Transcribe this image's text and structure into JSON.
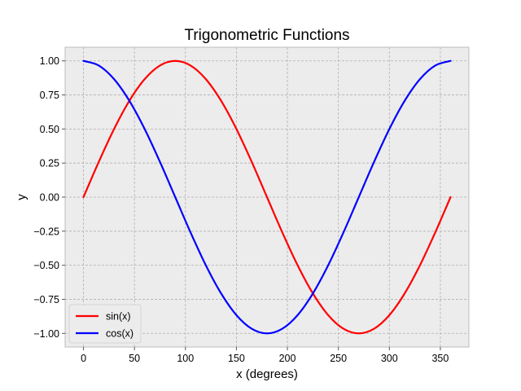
{
  "chart_data": {
    "type": "line",
    "title": "Trigonometric Functions",
    "xlabel": "x (degrees)",
    "ylabel": "y",
    "xlim": [
      -18,
      378
    ],
    "ylim": [
      -1.1,
      1.1
    ],
    "x_ticks": [
      0,
      50,
      100,
      150,
      200,
      250,
      300,
      350
    ],
    "y_ticks": [
      -1.0,
      -0.75,
      -0.5,
      -0.25,
      0.0,
      0.25,
      0.5,
      0.75,
      1.0
    ],
    "x_tick_labels": [
      "0",
      "50",
      "100",
      "150",
      "200",
      "250",
      "300",
      "350"
    ],
    "y_tick_labels": [
      "−1.00",
      "−0.75",
      "−0.50",
      "−0.25",
      "0.00",
      "0.25",
      "0.50",
      "0.75",
      "1.00"
    ],
    "grid": true,
    "legend_position": "lower-left",
    "x": [
      0,
      15,
      30,
      45,
      60,
      75,
      90,
      105,
      120,
      135,
      150,
      165,
      180,
      195,
      210,
      225,
      240,
      255,
      270,
      285,
      300,
      315,
      330,
      345,
      360
    ],
    "series": [
      {
        "name": "sin(x)",
        "color": "#ff0000",
        "values": [
          0.0,
          0.259,
          0.5,
          0.707,
          0.866,
          0.966,
          1.0,
          0.966,
          0.866,
          0.707,
          0.5,
          0.259,
          0.0,
          -0.259,
          -0.5,
          -0.707,
          -0.866,
          -0.966,
          -1.0,
          -0.966,
          -0.866,
          -0.707,
          -0.5,
          -0.259,
          0.0
        ]
      },
      {
        "name": "cos(x)",
        "color": "#0000ff",
        "values": [
          1.0,
          0.966,
          0.866,
          0.707,
          0.5,
          0.259,
          0.0,
          -0.259,
          -0.5,
          -0.707,
          -0.866,
          -0.966,
          -1.0,
          -0.966,
          -0.866,
          -0.707,
          -0.5,
          -0.259,
          0.0,
          0.259,
          0.5,
          0.707,
          0.866,
          0.966,
          1.0
        ]
      }
    ]
  },
  "style": {
    "plot_background": "#ececec",
    "grid_color": "#b0b0b0"
  }
}
